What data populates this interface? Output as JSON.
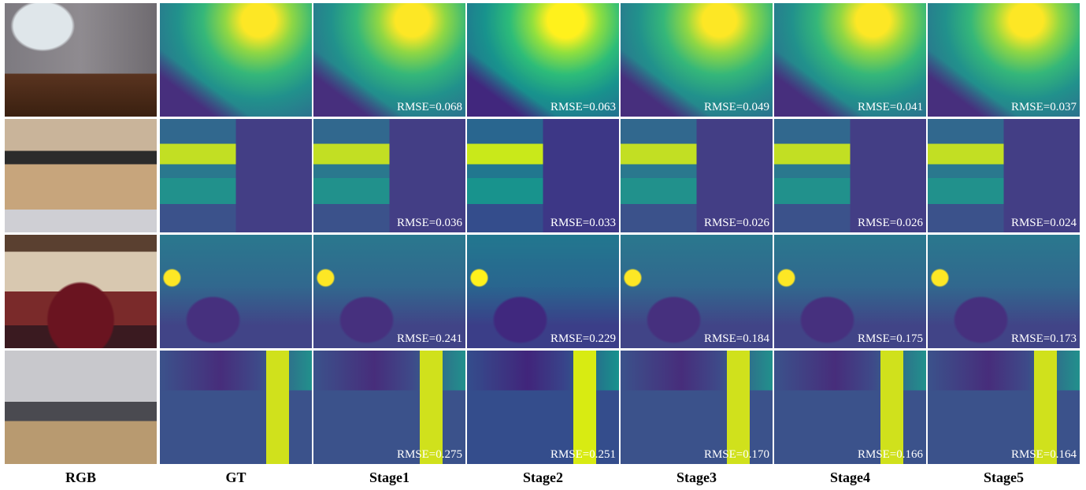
{
  "columns": [
    "RGB",
    "GT",
    "Stage1",
    "Stage2",
    "Stage3",
    "Stage4",
    "Stage5"
  ],
  "rows": [
    {
      "rmse": [
        "RMSE=0.068",
        "RMSE=0.063",
        "RMSE=0.049",
        "RMSE=0.041",
        "RMSE=0.037"
      ]
    },
    {
      "rmse": [
        "RMSE=0.036",
        "RMSE=0.033",
        "RMSE=0.026",
        "RMSE=0.026",
        "RMSE=0.024"
      ]
    },
    {
      "rmse": [
        "RMSE=0.241",
        "RMSE=0.229",
        "RMSE=0.184",
        "RMSE=0.175",
        "RMSE=0.173"
      ]
    },
    {
      "rmse": [
        "RMSE=0.275",
        "RMSE=0.251",
        "RMSE=0.170",
        "RMSE=0.166",
        "RMSE=0.164"
      ]
    }
  ]
}
